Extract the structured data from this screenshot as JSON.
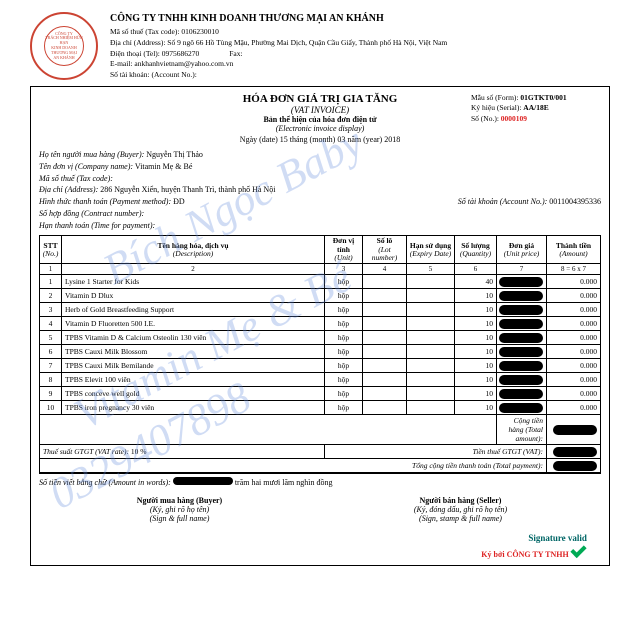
{
  "company": {
    "name": "CÔNG TY TNHH KINH DOANH THƯƠNG MẠI AN KHÁNH",
    "tax_label": "Mã số thuế (Tax code):",
    "tax": "0106230010",
    "addr_label": "Địa chỉ (Address):",
    "addr": "Số 9 ngõ 66 Hồ Tùng Mậu, Phường Mai Dịch, Quận Cầu Giấy, Thành phố Hà Nội, Việt Nam",
    "phone_label": "Điện thoại (Tel):",
    "phone": "0975686270",
    "fax_label": "Fax:",
    "email_label": "E-mail:",
    "email": "ankhanhvietnam@yahoo.com.vn",
    "acct_label": "Số tài khoản: (Account No.):"
  },
  "stamp": {
    "outer": "CÔNG TY TNHH",
    "inner1": "CÔNG TY",
    "inner2": "TRÁCH NHIỆM HỮU HẠN",
    "inner3": "KINH DOANH THƯƠNG MẠI",
    "inner4": "AN KHÁNH"
  },
  "title": {
    "t1": "HÓA ĐƠN GIÁ TRỊ GIA TĂNG",
    "t2": "(VAT INVOICE)",
    "t3": "Bản thể hiện của hóa đơn điện tử",
    "t4": "(Electronic invoice display)",
    "date": "Ngày (date) 15 tháng (month) 03 năm (year) 2018"
  },
  "form": {
    "l1": "Mẫu số (Form):",
    "v1": "01GTKT0/001",
    "l2": "Ký hiệu (Serial):",
    "v2": "AA/18E",
    "l3": "Số (No.):",
    "v3": "0000109"
  },
  "buyer": {
    "l1": "Họ tên người mua hàng (Buyer):",
    "v1": "Nguyễn Thị Thảo",
    "l2": "Tên đơn vị (Company name):",
    "v2": "Vitamin Mẹ & Bé",
    "l3": "Mã số thuế (Tax code):",
    "l4": "Địa chỉ (Address):",
    "v4": "286 Nguyễn Xiển, huyện Thanh Trì, thành phố Hà Nội",
    "l5": "Hình thức thanh toán (Payment method):",
    "v5": "ĐD",
    "l6": "Số tài khoản (Account No.):",
    "v6": "0011004395336",
    "l7": "Số hợp đồng (Contract number):",
    "l8": "Hạn thanh toán (Time for payment):"
  },
  "cols": {
    "c1": "STT",
    "c1s": "(No.)",
    "c2": "Tên hàng hóa, dịch vụ",
    "c2s": "(Description)",
    "c3": "Đơn vị tính",
    "c3s": "(Unit)",
    "c4": "Số lô",
    "c4s": "(Lot number)",
    "c5": "Hạn sử dụng",
    "c5s": "(Expiry Date)",
    "c6": "Số lượng",
    "c6s": "(Quantity)",
    "c7": "Đơn giá",
    "c7s": "(Unit price)",
    "c8": "Thành tiền",
    "c8s": "(Amount)"
  },
  "sub": {
    "s1": "1",
    "s2": "2",
    "s3": "3",
    "s4": "4",
    "s5": "5",
    "s6": "6",
    "s7": "7",
    "s8": "8 = 6 x 7"
  },
  "rows": [
    {
      "n": "1",
      "d": "Lysine 1 Starter for Kids",
      "u": "hộp",
      "q": "40",
      "a": "0.000"
    },
    {
      "n": "2",
      "d": "Vitamin D Dlux",
      "u": "hộp",
      "q": "10",
      "a": "0.000"
    },
    {
      "n": "3",
      "d": "Herb of Gold Breastfeeding Support",
      "u": "hộp",
      "q": "10",
      "a": "0.000"
    },
    {
      "n": "4",
      "d": "Vitamin D Fluoretten 500 I.E.",
      "u": "hộp",
      "q": "10",
      "a": "0.000"
    },
    {
      "n": "5",
      "d": "TPBS Vitamin D & Calcium Osteolin 130 viên",
      "u": "hộp",
      "q": "10",
      "a": "0.000"
    },
    {
      "n": "6",
      "d": "TPBS Cauxi Milk Blossom",
      "u": "hộp",
      "q": "10",
      "a": "0.000"
    },
    {
      "n": "7",
      "d": "TPBS Cauxi Milk Bemilande",
      "u": "hộp",
      "q": "10",
      "a": "0.000"
    },
    {
      "n": "8",
      "d": "TPBS Elevit 100 viên",
      "u": "hộp",
      "q": "10",
      "a": "0.000"
    },
    {
      "n": "9",
      "d": "TPBS conceve well gold",
      "u": "hộp",
      "q": "10",
      "a": "0.000"
    },
    {
      "n": "10",
      "d": "TPBS iron pregnancy 30 viên",
      "u": "hộp",
      "q": "10",
      "a": "0.000"
    }
  ],
  "foot": {
    "f1": "Cộng tiền hàng (Total amount):",
    "f2": "Thuế suất GTGT (VAT rate):",
    "f2v": "10 %",
    "f3": "Tiền thuế GTGT (VAT):",
    "f4": "Tổng cộng tiền thanh toán (Total payment):",
    "words_l": "Số tiền viết bằng chữ (Amount in words):",
    "words_v": "trăm hai mươi lăm nghìn đồng"
  },
  "sig": {
    "b1": "Người mua hàng (Buyer)",
    "b2": "(Ký, ghi rõ họ tên)",
    "b3": "(Sign & full name)",
    "s1": "Người bán hàng (Seller)",
    "s2": "(Ký, đóng dấu, ghi rõ họ tên)",
    "s3": "(Sign, stamp & full name)",
    "v": "Signature valid",
    "r": "Ký bởi CÔNG TY TNHH"
  },
  "wm": {
    "w1": "Bích Ngọc Baby",
    "w2": "Vitamin Mẹ & Bé",
    "w3": "0329407898"
  }
}
